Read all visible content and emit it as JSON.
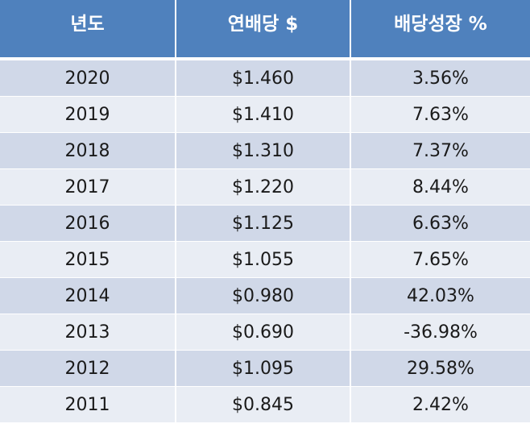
{
  "colors": {
    "header_bg": "#4f81bd",
    "header_text": "#ffffff",
    "row_odd": "#d0d8e8",
    "row_even": "#e9edf4"
  },
  "chart_data": {
    "type": "table",
    "columns": [
      "년도",
      "연배당 $",
      "배당성장 %"
    ],
    "rows": [
      [
        "2020",
        "$1.460",
        "3.56%"
      ],
      [
        "2019",
        "$1.410",
        "7.63%"
      ],
      [
        "2018",
        "$1.310",
        "7.37%"
      ],
      [
        "2017",
        "$1.220",
        "8.44%"
      ],
      [
        "2016",
        "$1.125",
        "6.63%"
      ],
      [
        "2015",
        "$1.055",
        "7.65%"
      ],
      [
        "2014",
        "$0.980",
        "42.03%"
      ],
      [
        "2013",
        "$0.690",
        "-36.98%"
      ],
      [
        "2012",
        "$1.095",
        "29.58%"
      ],
      [
        "2011",
        "$0.845",
        "2.42%"
      ]
    ]
  }
}
